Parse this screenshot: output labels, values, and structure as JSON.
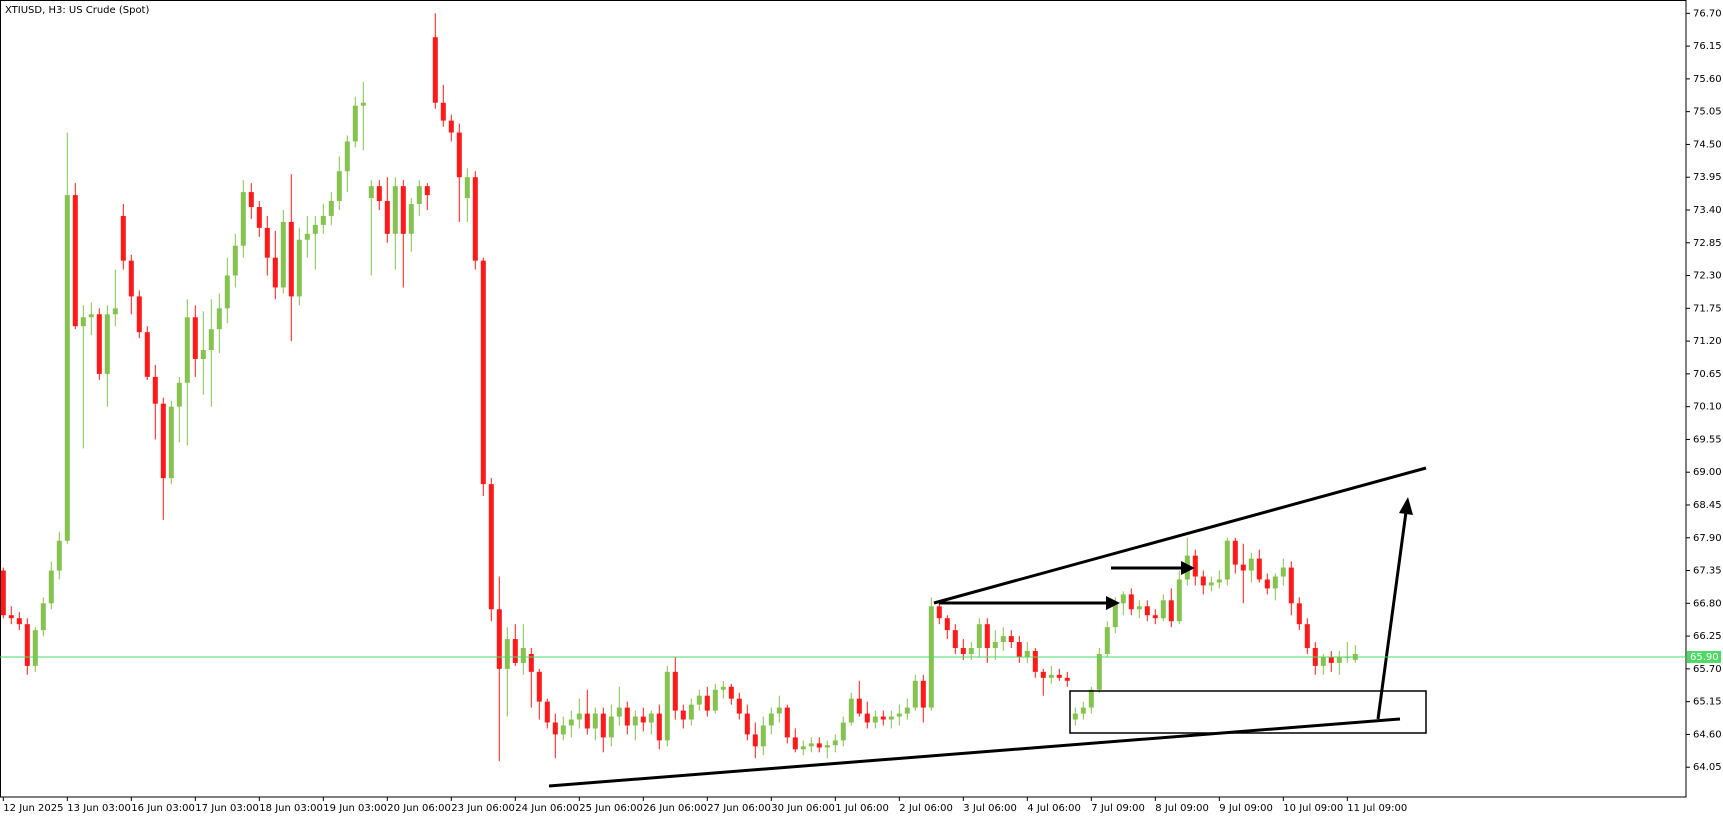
{
  "chart_data": {
    "type": "candlestick",
    "title": "XTIUSD, H3:  US Crude (Spot)",
    "up_color": "#86c24f",
    "down_color": "#ff1a1a",
    "ylim": [
      63.55,
      76.89
    ],
    "yticks": [
      64.05,
      {
        "value": 64.6,
        "label": "64.60"
      },
      65.15,
      {
        "value": 65.7,
        "label": "65.70"
      },
      66.25,
      {
        "value": 66.8,
        "label": "66.80"
      },
      67.35,
      {
        "value": 67.9,
        "label": "67.90"
      },
      68.45,
      {
        "value": 69,
        "label": "69.00"
      },
      69.55,
      {
        "value": 70.1,
        "label": "70.10"
      },
      70.65,
      {
        "value": 71.2,
        "label": "71.20"
      },
      71.75,
      {
        "value": 72.3,
        "label": "72.30"
      },
      72.85,
      {
        "value": 73.4,
        "label": "73.40"
      },
      73.95,
      {
        "value": 74.5,
        "label": "74.50"
      },
      75.05,
      {
        "value": 75.6,
        "label": "75.60"
      },
      76.15,
      {
        "value": 76.7,
        "label": "76.70"
      }
    ],
    "last_price": {
      "value": 65.9,
      "label": "65.90"
    },
    "last_price_color": "#4cd964",
    "categories": [
      "12 Jun 2025",
      null,
      null,
      null,
      null,
      null,
      null,
      null,
      "13 Jun 03:00",
      null,
      null,
      null,
      null,
      null,
      null,
      null,
      "16 Jun 03:00",
      null,
      null,
      null,
      null,
      null,
      null,
      null,
      "17 Jun 03:00",
      null,
      null,
      null,
      null,
      null,
      null,
      null,
      "18 Jun 03:00",
      null,
      null,
      null,
      null,
      null,
      null,
      null,
      "19 Jun 03:00",
      null,
      null,
      null,
      null,
      null,
      null,
      null,
      "20 Jun 06:00",
      null,
      null,
      null,
      null,
      null,
      null,
      null,
      "23 Jun 06:00",
      null,
      null,
      null,
      null,
      null,
      null,
      null,
      "24 Jun 06:00",
      null,
      null,
      null,
      null,
      null,
      null,
      null,
      "25 Jun 06:00",
      null,
      null,
      null,
      null,
      null,
      null,
      null,
      "26 Jun 06:00",
      null,
      null,
      null,
      null,
      null,
      null,
      null,
      "27 Jun 06:00",
      null,
      null,
      null,
      null,
      null,
      null,
      null,
      "30 Jun 06:00",
      null,
      null,
      null,
      null,
      null,
      null,
      null,
      "1 Jul 06:00",
      null,
      null,
      null,
      null,
      null,
      null,
      null,
      "2 Jul 06:00",
      null,
      null,
      null,
      null,
      null,
      null,
      null,
      "3 Jul 06:00",
      null,
      null,
      null,
      null,
      null,
      null,
      null,
      "4 Jul 06:00",
      null,
      null,
      null,
      null,
      null,
      null,
      null,
      "7 Jul 09:00",
      null,
      null,
      null,
      null,
      null,
      null,
      null,
      "8 Jul 09:00",
      null,
      null,
      null,
      null,
      null,
      null,
      null,
      "9 Jul 09:00",
      null,
      null,
      null,
      null,
      null,
      null,
      null,
      "10 Jul 09:00",
      null,
      null,
      null,
      null,
      null,
      null,
      null,
      "11 Jul 09:00",
      null
    ],
    "values": [
      [
        67.35,
        67.4,
        66.55,
        66.6
      ],
      [
        66.6,
        66.75,
        66.45,
        66.55
      ],
      [
        66.55,
        66.65,
        66.35,
        66.45
      ],
      [
        66.45,
        66.55,
        65.6,
        65.75
      ],
      [
        65.75,
        66.4,
        65.65,
        66.35
      ],
      [
        66.35,
        66.9,
        66.25,
        66.8
      ],
      [
        66.8,
        67.5,
        66.7,
        67.35
      ],
      [
        67.35,
        68,
        67.2,
        67.85
      ],
      [
        67.85,
        74.7,
        67.8,
        73.65
      ],
      [
        73.65,
        73.85,
        71.4,
        71.45
      ],
      [
        71.45,
        71.8,
        69.4,
        71.6
      ],
      [
        71.6,
        71.85,
        71.3,
        71.65
      ],
      [
        71.65,
        71.75,
        70.55,
        70.65
      ],
      [
        70.65,
        71.8,
        70.1,
        71.65
      ],
      [
        71.65,
        72.4,
        71.45,
        71.75
      ],
      [
        73.3,
        73.5,
        72.4,
        72.55
      ],
      [
        72.55,
        72.65,
        71.65,
        71.95
      ],
      [
        71.95,
        72.05,
        71.25,
        71.35
      ],
      [
        71.35,
        71.45,
        70.55,
        70.6
      ],
      [
        70.6,
        70.8,
        69.55,
        70.15
      ],
      [
        70.15,
        70.25,
        68.2,
        68.9
      ],
      [
        68.9,
        70.2,
        68.8,
        70.1
      ],
      [
        70.1,
        70.6,
        69.5,
        70.5
      ],
      [
        70.5,
        71.9,
        69.45,
        71.6
      ],
      [
        71.6,
        71.8,
        70.6,
        70.9
      ],
      [
        70.9,
        71.7,
        70.3,
        71.05
      ],
      [
        71.05,
        71.9,
        70.1,
        71.4
      ],
      [
        71.4,
        72,
        71,
        71.75
      ],
      [
        71.75,
        72.6,
        71.5,
        72.3
      ],
      [
        72.3,
        73,
        72.1,
        72.8
      ],
      [
        72.8,
        73.9,
        72.6,
        73.7
      ],
      [
        73.7,
        73.85,
        73.25,
        73.45
      ],
      [
        73.45,
        73.55,
        72.95,
        73.1
      ],
      [
        73.1,
        73.3,
        72.3,
        72.6
      ],
      [
        72.6,
        73.05,
        71.9,
        72.1
      ],
      [
        72.1,
        73.4,
        72,
        73.2
      ],
      [
        73.2,
        74,
        71.2,
        71.95
      ],
      [
        71.95,
        73.1,
        71.8,
        72.9
      ],
      [
        72.9,
        73.3,
        72.6,
        73
      ],
      [
        73,
        73.3,
        72.4,
        73.15
      ],
      [
        73.15,
        73.5,
        73,
        73.3
      ],
      [
        73.3,
        73.7,
        73.15,
        73.55
      ],
      [
        73.55,
        74.3,
        73.4,
        74.05
      ],
      [
        74.05,
        74.65,
        73.7,
        74.55
      ],
      [
        74.55,
        75.3,
        74.45,
        75.15
      ],
      [
        75.15,
        75.55,
        74.4,
        75.2
      ],
      [
        73.6,
        73.9,
        72.3,
        73.8
      ],
      [
        73.8,
        73.9,
        73.4,
        73.55
      ],
      [
        73.55,
        73.95,
        72.85,
        73
      ],
      [
        73,
        73.95,
        72.4,
        73.8
      ],
      [
        73.8,
        73.9,
        72.1,
        73
      ],
      [
        73,
        73.6,
        72.7,
        73.5
      ],
      [
        73.5,
        73.9,
        73.3,
        73.8
      ],
      [
        73.8,
        73.85,
        73.4,
        73.65
      ],
      [
        76.3,
        76.7,
        75.1,
        75.2
      ],
      [
        75.2,
        75.5,
        74.8,
        74.9
      ],
      [
        74.9,
        75,
        74.55,
        74.7
      ],
      [
        74.7,
        74.85,
        73.2,
        73.95
      ],
      [
        73.6,
        74.1,
        73.2,
        73.95
      ],
      [
        73.95,
        74.05,
        72.4,
        72.55
      ],
      [
        72.55,
        72.6,
        68.6,
        68.8
      ],
      [
        68.8,
        68.9,
        66.5,
        66.7
      ],
      [
        66.7,
        67.25,
        64.15,
        65.7
      ],
      [
        65.7,
        66.4,
        64.9,
        66.2
      ],
      [
        66.2,
        66.45,
        65.75,
        65.8
      ],
      [
        65.8,
        66.45,
        65.6,
        66.05
      ],
      [
        65.95,
        66.05,
        65.05,
        65.65
      ],
      [
        65.65,
        65.7,
        64.85,
        65.15
      ],
      [
        65.15,
        65.2,
        64.7,
        64.8
      ],
      [
        64.8,
        64.95,
        64.2,
        64.6
      ],
      [
        64.6,
        64.9,
        64.5,
        64.75
      ],
      [
        64.75,
        65,
        64.55,
        64.85
      ],
      [
        64.85,
        65.2,
        64.7,
        64.95
      ],
      [
        64.95,
        65.35,
        64.6,
        64.7
      ],
      [
        64.7,
        65.05,
        64.5,
        64.95
      ],
      [
        64.95,
        65.05,
        64.3,
        64.55
      ],
      [
        64.55,
        65.1,
        64.4,
        64.9
      ],
      [
        64.9,
        65.4,
        64.75,
        65.05
      ],
      [
        65.05,
        65.15,
        64.6,
        64.75
      ],
      [
        64.75,
        65,
        64.5,
        64.9
      ],
      [
        64.9,
        65.05,
        64.65,
        64.8
      ],
      [
        64.8,
        65,
        64.6,
        64.95
      ],
      [
        64.95,
        65.1,
        64.35,
        64.5
      ],
      [
        64.5,
        65.75,
        64.4,
        65.65
      ],
      [
        65.65,
        65.9,
        64.85,
        65
      ],
      [
        65,
        65.1,
        64.7,
        64.85
      ],
      [
        64.85,
        65.2,
        64.75,
        65.1
      ],
      [
        65.1,
        65.35,
        65,
        65.25
      ],
      [
        65.25,
        65.4,
        64.9,
        65
      ],
      [
        65,
        65.45,
        64.95,
        65.35
      ],
      [
        65.35,
        65.5,
        65.2,
        65.4
      ],
      [
        65.4,
        65.45,
        65.1,
        65.2
      ],
      [
        65.2,
        65.3,
        64.85,
        64.95
      ],
      [
        64.95,
        65.1,
        64.5,
        64.6
      ],
      [
        64.6,
        64.8,
        64.2,
        64.4
      ],
      [
        64.4,
        64.9,
        64.25,
        64.75
      ],
      [
        64.75,
        65.05,
        64.6,
        64.95
      ],
      [
        64.95,
        65.25,
        64.8,
        65.05
      ],
      [
        65.05,
        65.1,
        64.45,
        64.55
      ],
      [
        64.55,
        64.7,
        64.3,
        64.35
      ],
      [
        64.35,
        64.5,
        64.25,
        64.4
      ],
      [
        64.4,
        64.55,
        64.3,
        64.45
      ],
      [
        64.45,
        64.55,
        64.3,
        64.38
      ],
      [
        64.38,
        64.5,
        64.2,
        64.42
      ],
      [
        64.42,
        64.6,
        64.3,
        64.5
      ],
      [
        64.5,
        64.9,
        64.4,
        64.8
      ],
      [
        64.8,
        65.3,
        64.75,
        65.2
      ],
      [
        65.2,
        65.5,
        64.9,
        64.95
      ],
      [
        64.95,
        65.15,
        64.7,
        64.8
      ],
      [
        64.8,
        65,
        64.7,
        64.9
      ],
      [
        64.9,
        65,
        64.75,
        64.85
      ],
      [
        64.85,
        65,
        64.7,
        64.9
      ],
      [
        64.9,
        65.1,
        64.75,
        64.95
      ],
      [
        64.95,
        65.2,
        64.85,
        65.05
      ],
      [
        65.05,
        65.6,
        65,
        65.5
      ],
      [
        65.5,
        65.6,
        64.8,
        65.05
      ],
      [
        65.05,
        66.9,
        65,
        66.75
      ],
      [
        66.75,
        66.8,
        66.45,
        66.55
      ],
      [
        66.55,
        66.6,
        66.2,
        66.35
      ],
      [
        66.35,
        66.45,
        65.95,
        66.05
      ],
      [
        66.05,
        66.2,
        65.85,
        65.95
      ],
      [
        65.95,
        66.15,
        65.85,
        66.05
      ],
      [
        66.05,
        66.55,
        65.9,
        66.45
      ],
      [
        66.45,
        66.55,
        65.8,
        66.05
      ],
      [
        66.05,
        66.35,
        65.85,
        66.15
      ],
      [
        66.15,
        66.4,
        66,
        66.25
      ],
      [
        66.25,
        66.35,
        66.05,
        66.15
      ],
      [
        66.15,
        66.25,
        65.8,
        65.9
      ],
      [
        65.9,
        66.15,
        65.8,
        66
      ],
      [
        66,
        66.05,
        65.55,
        65.65
      ],
      [
        65.65,
        65.7,
        65.25,
        65.55
      ],
      [
        65.55,
        65.75,
        65.45,
        65.6
      ],
      [
        65.6,
        65.7,
        65.5,
        65.55
      ],
      [
        65.55,
        65.65,
        65.4,
        65.5
      ],
      [
        64.85,
        65.05,
        64.75,
        64.95
      ],
      [
        64.95,
        65.15,
        64.85,
        65.05
      ],
      [
        65.05,
        65.4,
        64.95,
        65.35
      ],
      [
        65.35,
        66.05,
        65.3,
        65.95
      ],
      [
        65.95,
        66.5,
        65.9,
        66.4
      ],
      [
        66.4,
        66.9,
        66.3,
        66.8
      ],
      [
        66.8,
        67,
        66.6,
        66.95
      ],
      [
        66.95,
        67.05,
        66.6,
        66.7
      ],
      [
        66.7,
        66.85,
        66.55,
        66.75
      ],
      [
        66.75,
        66.85,
        66.5,
        66.6
      ],
      [
        66.6,
        66.7,
        66.45,
        66.55
      ],
      [
        66.55,
        66.95,
        66.5,
        66.85
      ],
      [
        66.85,
        67.05,
        66.4,
        66.5
      ],
      [
        66.5,
        67.35,
        66.45,
        67.2
      ],
      [
        67.2,
        67.9,
        67.1,
        67.6
      ],
      [
        67.6,
        67.7,
        67.1,
        67.25
      ],
      [
        67.25,
        67.35,
        66.95,
        67.1
      ],
      [
        67.1,
        67.25,
        67,
        67.15
      ],
      [
        67.15,
        67.35,
        67.05,
        67.2
      ],
      [
        67.2,
        67.9,
        67.1,
        67.85
      ],
      [
        67.85,
        67.9,
        67.3,
        67.45
      ],
      [
        67.45,
        67.8,
        66.8,
        67.35
      ],
      [
        67.35,
        67.65,
        67.15,
        67.55
      ],
      [
        67.55,
        67.7,
        67.15,
        67.2
      ],
      [
        67.2,
        67.3,
        66.95,
        67.05
      ],
      [
        67.05,
        67.3,
        66.85,
        67.25
      ],
      [
        67.25,
        67.55,
        67.1,
        67.4
      ],
      [
        67.4,
        67.5,
        66.6,
        66.8
      ],
      [
        66.8,
        66.9,
        66.35,
        66.45
      ],
      [
        66.45,
        66.55,
        65.95,
        66.05
      ],
      [
        66.05,
        66.15,
        65.6,
        65.75
      ],
      [
        65.75,
        65.95,
        65.6,
        65.9
      ],
      [
        65.9,
        66,
        65.65,
        65.8
      ],
      [
        65.8,
        66,
        65.6,
        65.9
      ],
      [
        65.9,
        66.15,
        65.8,
        65.9
      ],
      [
        65.85,
        66.1,
        65.8,
        65.95
      ]
    ]
  }
}
